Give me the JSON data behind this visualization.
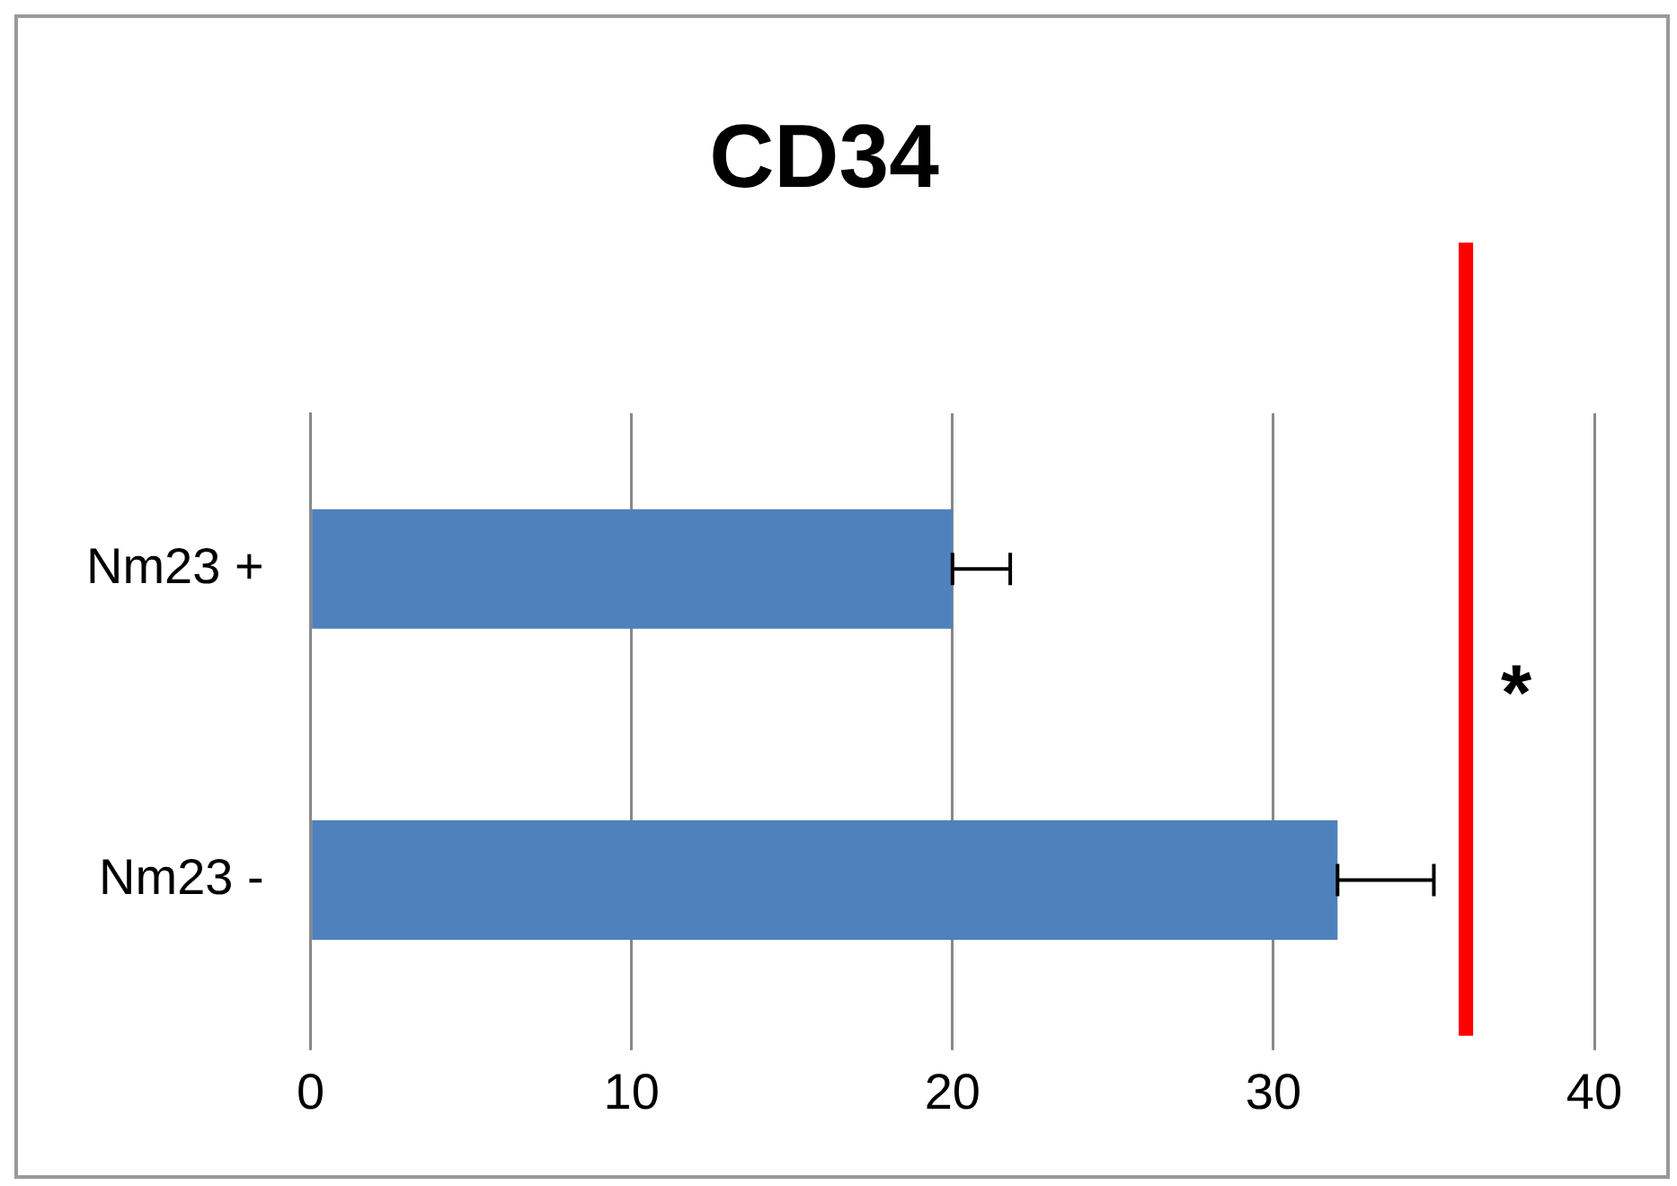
{
  "chart_data": {
    "type": "bar",
    "title": "CD34",
    "orientation": "horizontal",
    "categories": [
      "Nm23 +",
      "Nm23 -"
    ],
    "values": [
      20,
      32
    ],
    "errors": [
      [
        20,
        21.8
      ],
      [
        32,
        35
      ]
    ],
    "color": "#4f81bd",
    "xlim": [
      0,
      40
    ],
    "xticks": [
      0,
      10,
      20,
      30,
      40
    ],
    "grid": "x",
    "legend": false,
    "ref_lines": [
      {
        "axis": "x",
        "value": 36,
        "label": "*",
        "color": "#ff0000"
      }
    ]
  }
}
